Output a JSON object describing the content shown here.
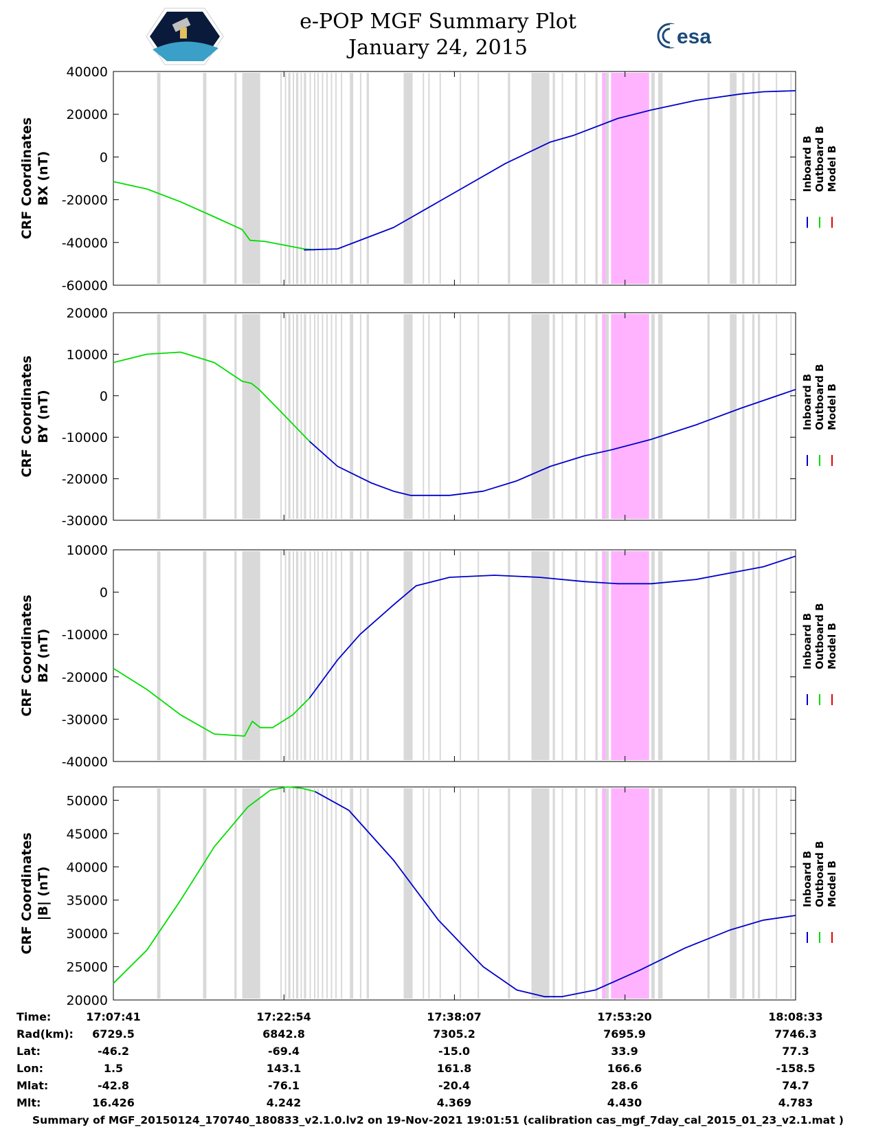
{
  "title": "e-POP MGF Summary Plot",
  "subtitle": "January 24, 2015",
  "logo_right_text": "esa",
  "footer": "Summary of MGF_20150124_170740_180833_v2.1.0.lv2 on 19-Nov-2021 19:01:51 (calibration cas_mgf_7day_cal_2015_01_23_v2.1.mat )",
  "legend": [
    "Inboard B",
    "Outboard B",
    "Model B"
  ],
  "colors": {
    "inboard": "#0000cc",
    "outboard": "#00dd00",
    "model": "#dd0000",
    "gap": "#d9d9d9",
    "flag": "#ffb3ff"
  },
  "info_table": {
    "row_labels": [
      "Time:",
      "Rad(km):",
      "Lat:",
      "Lon:",
      "Mlat:",
      "Mlt:"
    ],
    "columns": [
      [
        "17:07:41",
        "6729.5",
        "-46.2",
        "1.5",
        "-42.8",
        "16.426"
      ],
      [
        "17:22:54",
        "6842.8",
        "-69.4",
        "143.1",
        "-76.1",
        "4.242"
      ],
      [
        "17:38:07",
        "7305.2",
        "-15.0",
        "161.8",
        "-20.4",
        "4.369"
      ],
      [
        "17:53:20",
        "7695.9",
        "33.9",
        "166.6",
        "28.6",
        "4.430"
      ],
      [
        "18:08:33",
        "7746.3",
        "77.3",
        "-158.5",
        "74.7",
        "4.783"
      ]
    ]
  },
  "chart_data": [
    {
      "type": "line",
      "title": "e-POP MGF Summary Plot",
      "ylabel": [
        "CRF Coordinates",
        "BX (nT)"
      ],
      "ylim": [
        -60000,
        40000
      ],
      "yticks": [
        40000,
        20000,
        0,
        -20000,
        -40000,
        -60000
      ],
      "x_minutes": [
        0,
        15.22,
        30.43,
        45.65,
        60.87
      ],
      "series": [
        {
          "name": "Outboard B",
          "x": [
            0,
            3,
            6,
            9,
            11.5,
            12.2,
            13.5,
            15,
            17,
            18
          ],
          "y": [
            -11500,
            -15000,
            -21000,
            -28000,
            -34000,
            -39000,
            -39500,
            -41000,
            -43000,
            -43500
          ]
        },
        {
          "name": "Inboard B",
          "x": [
            17,
            20,
            25,
            30,
            35,
            39,
            41,
            45,
            48,
            52,
            56,
            58,
            60.87
          ],
          "y": [
            -43500,
            -43000,
            -33000,
            -18000,
            -3000,
            7000,
            10000,
            18000,
            22000,
            26500,
            29500,
            30500,
            31000
          ]
        }
      ]
    },
    {
      "type": "line",
      "ylabel": [
        "CRF Coordinates",
        "BY (nT)"
      ],
      "ylim": [
        -30000,
        20000
      ],
      "yticks": [
        20000,
        10000,
        0,
        -10000,
        -20000,
        -30000
      ],
      "x_minutes": [
        0,
        15.22,
        30.43,
        45.65,
        60.87
      ],
      "series": [
        {
          "name": "Outboard B",
          "x": [
            0,
            3,
            6,
            9,
            11.5,
            12.3,
            13,
            15,
            17.5
          ],
          "y": [
            8000,
            10000,
            10500,
            8000,
            3500,
            3000,
            1500,
            -4000,
            -11000
          ]
        },
        {
          "name": "Inboard B",
          "x": [
            17.5,
            20,
            23,
            25,
            26.5,
            28,
            30,
            33,
            36,
            39,
            42,
            44.5,
            48,
            52,
            56,
            60.87
          ],
          "y": [
            -11000,
            -17000,
            -21000,
            -23000,
            -24000,
            -24000,
            -24000,
            -23000,
            -20500,
            -17000,
            -14500,
            -13000,
            -10500,
            -7000,
            -3000,
            1500
          ]
        }
      ]
    },
    {
      "type": "line",
      "ylabel": [
        "CRF Coordinates",
        "BZ (nT)"
      ],
      "ylim": [
        -40000,
        10000
      ],
      "yticks": [
        10000,
        0,
        -10000,
        -20000,
        -30000,
        -40000
      ],
      "x_minutes": [
        0,
        15.22,
        30.43,
        45.65,
        60.87
      ],
      "series": [
        {
          "name": "Outboard B",
          "x": [
            0,
            3,
            6,
            9,
            11.7,
            12.4,
            13.1,
            14.2,
            16,
            17.5
          ],
          "y": [
            -18000,
            -23000,
            -29000,
            -33500,
            -34000,
            -30500,
            -32000,
            -32000,
            -29000,
            -25000
          ]
        },
        {
          "name": "Inboard B",
          "x": [
            17.5,
            20,
            22,
            25,
            27,
            30,
            34,
            38,
            42,
            45,
            48,
            52,
            56,
            58,
            60.87
          ],
          "y": [
            -25000,
            -16000,
            -10000,
            -3000,
            1500,
            3500,
            4000,
            3500,
            2500,
            2000,
            2000,
            3000,
            5000,
            6000,
            8500
          ]
        }
      ]
    },
    {
      "type": "line",
      "ylabel": [
        "CRF Coordinates",
        "|B| (nT)"
      ],
      "ylim": [
        20000,
        52000
      ],
      "yticks": [
        50000,
        45000,
        40000,
        35000,
        30000,
        25000,
        20000
      ],
      "x_minutes": [
        0,
        15.22,
        30.43,
        45.65,
        60.87
      ],
      "series": [
        {
          "name": "Outboard B",
          "x": [
            0,
            3,
            6,
            9,
            12,
            14,
            15.5,
            16.8,
            18
          ],
          "y": [
            22500,
            27500,
            35000,
            43000,
            49000,
            51500,
            52000,
            51800,
            51300
          ]
        },
        {
          "name": "Inboard B",
          "x": [
            18,
            21,
            25,
            29,
            33,
            36,
            38.5,
            40,
            43,
            47,
            51,
            55,
            58,
            60.87
          ],
          "y": [
            51300,
            48500,
            41000,
            32000,
            25000,
            21500,
            20500,
            20500,
            21500,
            24500,
            27800,
            30500,
            32000,
            32700
          ]
        }
      ]
    }
  ]
}
